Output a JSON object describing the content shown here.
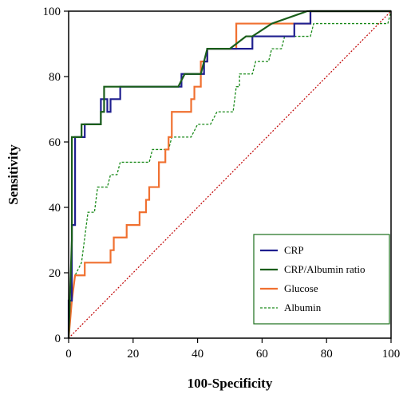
{
  "chart_data": {
    "type": "line",
    "title": "",
    "xlabel": "100-Specificity",
    "ylabel": "Sensitivity",
    "xlim": [
      0,
      100
    ],
    "ylim": [
      0,
      100
    ],
    "xticks": [
      "0",
      "20",
      "40",
      "60",
      "80",
      "100"
    ],
    "yticks": [
      "0",
      "20",
      "40",
      "60",
      "80",
      "100"
    ],
    "grid": false,
    "legend": "bottom-right",
    "reference_line": {
      "x": [
        0,
        100
      ],
      "y": [
        0,
        100
      ],
      "color": "#c00000",
      "style": "dotted"
    },
    "series": [
      {
        "name": "CRP",
        "color": "#1f1f8f",
        "style": "solid",
        "points": [
          [
            0,
            0
          ],
          [
            0,
            11.5
          ],
          [
            1,
            11.5
          ],
          [
            1,
            34.6
          ],
          [
            2,
            34.6
          ],
          [
            2,
            61.5
          ],
          [
            5,
            61.5
          ],
          [
            5,
            65.4
          ],
          [
            10,
            65.4
          ],
          [
            10,
            73.1
          ],
          [
            12,
            73.1
          ],
          [
            12,
            69.2
          ],
          [
            13,
            69.2
          ],
          [
            13,
            73.1
          ],
          [
            16,
            73.1
          ],
          [
            16,
            76.9
          ],
          [
            35,
            76.9
          ],
          [
            35,
            80.8
          ],
          [
            42,
            80.8
          ],
          [
            42,
            84.6
          ],
          [
            43,
            84.6
          ],
          [
            43,
            88.5
          ],
          [
            57,
            88.5
          ],
          [
            57,
            92.3
          ],
          [
            70,
            92.3
          ],
          [
            70,
            96.2
          ],
          [
            75,
            96.2
          ],
          [
            75,
            100
          ],
          [
            100,
            100
          ]
        ]
      },
      {
        "name": "CRP/Albumin ratio",
        "color": "#1a5e1a",
        "style": "solid",
        "points": [
          [
            0,
            0
          ],
          [
            1,
            30
          ],
          [
            1,
            61.5
          ],
          [
            4,
            61.5
          ],
          [
            4,
            65.4
          ],
          [
            10,
            65.4
          ],
          [
            10,
            69.2
          ],
          [
            11,
            69.2
          ],
          [
            11,
            76.9
          ],
          [
            34,
            76.9
          ],
          [
            36,
            80.8
          ],
          [
            41,
            80.8
          ],
          [
            43,
            88.5
          ],
          [
            50,
            88.5
          ],
          [
            55,
            92.3
          ],
          [
            57,
            92.3
          ],
          [
            63,
            96.2
          ],
          [
            74,
            100
          ],
          [
            100,
            100
          ]
        ]
      },
      {
        "name": "Glucose",
        "color": "#f07030",
        "style": "solid",
        "points": [
          [
            0,
            0
          ],
          [
            1,
            11.5
          ],
          [
            2,
            19.2
          ],
          [
            5,
            19.2
          ],
          [
            5,
            23.1
          ],
          [
            13,
            23.1
          ],
          [
            13,
            26.9
          ],
          [
            14,
            26.9
          ],
          [
            14,
            30.8
          ],
          [
            18,
            30.8
          ],
          [
            18,
            34.6
          ],
          [
            22,
            34.6
          ],
          [
            22,
            38.5
          ],
          [
            24,
            38.5
          ],
          [
            24,
            42.3
          ],
          [
            25,
            42.3
          ],
          [
            25,
            46.2
          ],
          [
            28,
            46.2
          ],
          [
            28,
            53.8
          ],
          [
            30,
            53.8
          ],
          [
            30,
            57.7
          ],
          [
            31,
            57.7
          ],
          [
            31,
            61.5
          ],
          [
            32,
            61.5
          ],
          [
            32,
            69.2
          ],
          [
            38,
            69.2
          ],
          [
            38,
            73.1
          ],
          [
            39,
            73.1
          ],
          [
            39,
            76.9
          ],
          [
            41,
            76.9
          ],
          [
            41,
            84.6
          ],
          [
            43,
            84.6
          ],
          [
            43,
            88.5
          ],
          [
            52,
            88.5
          ],
          [
            52,
            96.2
          ],
          [
            75,
            96.2
          ],
          [
            75,
            100
          ],
          [
            100,
            100
          ]
        ]
      },
      {
        "name": "Albumin",
        "color": "#1a8a1a",
        "style": "dashed",
        "points": [
          [
            0,
            0
          ],
          [
            1,
            11.5
          ],
          [
            2,
            19.2
          ],
          [
            4,
            23.1
          ],
          [
            5,
            30.8
          ],
          [
            6,
            38.5
          ],
          [
            8,
            38.5
          ],
          [
            9,
            46.2
          ],
          [
            12,
            46.2
          ],
          [
            13,
            50
          ],
          [
            15,
            50
          ],
          [
            16,
            53.8
          ],
          [
            25,
            53.8
          ],
          [
            26,
            57.7
          ],
          [
            31,
            57.7
          ],
          [
            32,
            61.5
          ],
          [
            38,
            61.5
          ],
          [
            40,
            65.4
          ],
          [
            44,
            65.4
          ],
          [
            46,
            69.2
          ],
          [
            51,
            69.2
          ],
          [
            52,
            76.9
          ],
          [
            53,
            76.9
          ],
          [
            53,
            80.8
          ],
          [
            57,
            80.8
          ],
          [
            58,
            84.6
          ],
          [
            62,
            84.6
          ],
          [
            63,
            88.5
          ],
          [
            66,
            88.5
          ],
          [
            67,
            92.3
          ],
          [
            75,
            92.3
          ],
          [
            76,
            96.2
          ],
          [
            99,
            96.2
          ],
          [
            100,
            100
          ]
        ]
      }
    ]
  }
}
